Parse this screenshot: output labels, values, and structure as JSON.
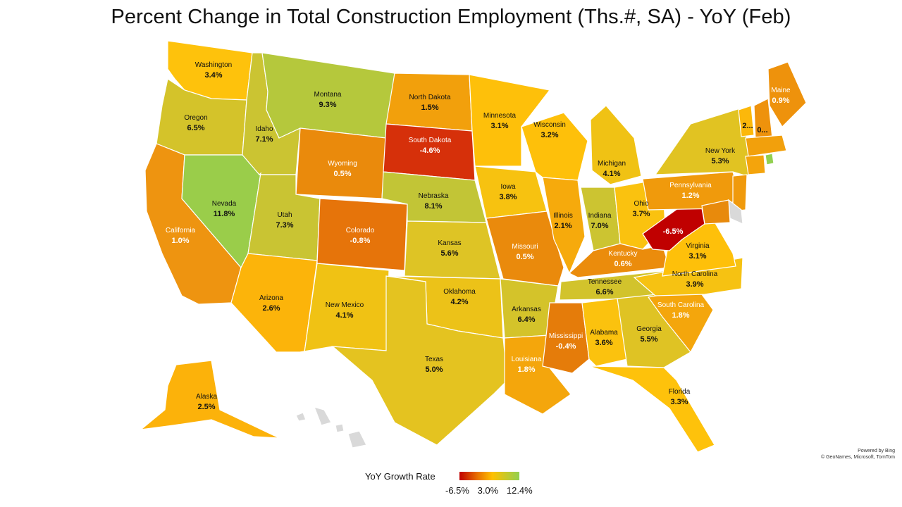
{
  "title": "Percent Change in Total Construction Employment (Ths.#, SA) - YoY (Feb)",
  "credit": {
    "line1": "Powered by Bing",
    "line2": "© GeoNames, Microsoft, TomTom"
  },
  "legend": {
    "title": "YoY Growth Rate",
    "min": "-6.5%",
    "mid": "3.0%",
    "max": "12.4%"
  },
  "colors": {
    "low": "#c00000",
    "mid": "#ffc000",
    "high": "#92d050",
    "nodata": "#d9d9d9"
  },
  "states": [
    {
      "id": "WA",
      "name": "Washington",
      "value": "3.4%",
      "color": "#fec20c"
    },
    {
      "id": "OR",
      "name": "Oregon",
      "value": "6.5%",
      "color": "#d4c32a"
    },
    {
      "id": "CA",
      "name": "California",
      "value": "1.0%",
      "color": "#ee9410"
    },
    {
      "id": "NV",
      "name": "Nevada",
      "value": "11.8%",
      "color": "#9acd4a"
    },
    {
      "id": "ID",
      "name": "Idaho",
      "value": "7.1%",
      "color": "#cbc432"
    },
    {
      "id": "MT",
      "name": "Montana",
      "value": "9.3%",
      "color": "#b5c83c"
    },
    {
      "id": "WY",
      "name": "Wyoming",
      "value": "0.5%",
      "color": "#ea8a0c"
    },
    {
      "id": "UT",
      "name": "Utah",
      "value": "7.3%",
      "color": "#c9c433"
    },
    {
      "id": "AZ",
      "name": "Arizona",
      "value": "2.6%",
      "color": "#fcb40a"
    },
    {
      "id": "CO",
      "name": "Colorado",
      "value": "-0.8%",
      "color": "#e6740a"
    },
    {
      "id": "NM",
      "name": "New Mexico",
      "value": "4.1%",
      "color": "#f0c214"
    },
    {
      "id": "ND",
      "name": "North Dakota",
      "value": "1.5%",
      "color": "#f2a00c"
    },
    {
      "id": "SD",
      "name": "South Dakota",
      "value": "-4.6%",
      "color": "#d6300a"
    },
    {
      "id": "NE",
      "name": "Nebraska",
      "value": "8.1%",
      "color": "#c2c536"
    },
    {
      "id": "KS",
      "name": "Kansas",
      "value": "5.6%",
      "color": "#dec425"
    },
    {
      "id": "OK",
      "name": "Oklahoma",
      "value": "4.2%",
      "color": "#ecc218"
    },
    {
      "id": "TX",
      "name": "Texas",
      "value": "5.0%",
      "color": "#e4c320"
    },
    {
      "id": "MN",
      "name": "Minnesota",
      "value": "3.1%",
      "color": "#fec00a"
    },
    {
      "id": "IA",
      "name": "Iowa",
      "value": "3.8%",
      "color": "#f7c210"
    },
    {
      "id": "MO",
      "name": "Missouri",
      "value": "0.5%",
      "color": "#ea8a0c"
    },
    {
      "id": "AR",
      "name": "Arkansas",
      "value": "6.4%",
      "color": "#d4c32a"
    },
    {
      "id": "LA",
      "name": "Louisiana",
      "value": "1.8%",
      "color": "#f4a60c"
    },
    {
      "id": "WI",
      "name": "Wisconsin",
      "value": "3.2%",
      "color": "#fec00a"
    },
    {
      "id": "IL",
      "name": "Illinois",
      "value": "2.1%",
      "color": "#f6aa0c"
    },
    {
      "id": "MI",
      "name": "Michigan",
      "value": "4.1%",
      "color": "#f0c214"
    },
    {
      "id": "IN",
      "name": "Indiana",
      "value": "7.0%",
      "color": "#ccc431"
    },
    {
      "id": "OH",
      "name": "Ohio",
      "value": "3.7%",
      "color": "#fac20f"
    },
    {
      "id": "KY",
      "name": "Kentucky",
      "value": "0.6%",
      "color": "#eb8c0c"
    },
    {
      "id": "TN",
      "name": "Tennessee",
      "value": "6.6%",
      "color": "#d2c32c"
    },
    {
      "id": "MS",
      "name": "Mississippi",
      "value": "-0.4%",
      "color": "#e57c0a"
    },
    {
      "id": "AL",
      "name": "Alabama",
      "value": "3.6%",
      "color": "#fbc20e"
    },
    {
      "id": "GA",
      "name": "Georgia",
      "value": "5.5%",
      "color": "#dfc324"
    },
    {
      "id": "FL",
      "name": "Florida",
      "value": "3.3%",
      "color": "#fec20b"
    },
    {
      "id": "SC",
      "name": "South Carolina",
      "value": "1.8%",
      "color": "#f4a60c"
    },
    {
      "id": "NC",
      "name": "North Carolina",
      "value": "3.9%",
      "color": "#f6c212"
    },
    {
      "id": "VA",
      "name": "Virginia",
      "value": "3.1%",
      "color": "#fec00a"
    },
    {
      "id": "WV",
      "name": "",
      "value": "-6.5%",
      "color": "#c00000"
    },
    {
      "id": "PA",
      "name": "Pennsylvania",
      "value": "1.2%",
      "color": "#f09a0c"
    },
    {
      "id": "NY",
      "name": "New York",
      "value": "5.3%",
      "color": "#e1c322"
    },
    {
      "id": "ME",
      "name": "Maine",
      "value": "0.9%",
      "color": "#ee920c"
    },
    {
      "id": "VT",
      "name": "",
      "value": "2...",
      "color": "#fcb80a"
    },
    {
      "id": "NH",
      "name": "",
      "value": "0...",
      "color": "#ee920c"
    },
    {
      "id": "MA",
      "name": "",
      "value": "",
      "color": "#f2a00c"
    },
    {
      "id": "CT",
      "name": "",
      "value": "",
      "color": "#f4a40c"
    },
    {
      "id": "RI",
      "name": "",
      "value": "",
      "color": "#92d050"
    },
    {
      "id": "NJ",
      "name": "",
      "value": "",
      "color": "#f09a0c"
    },
    {
      "id": "DE",
      "name": "",
      "value": "",
      "color": "#d9d9d9"
    },
    {
      "id": "MD",
      "name": "",
      "value": "",
      "color": "#e88a0c"
    },
    {
      "id": "AK",
      "name": "Alaska",
      "value": "2.5%",
      "color": "#fcb20a"
    },
    {
      "id": "HI",
      "name": "",
      "value": "",
      "color": "#d9d9d9"
    }
  ]
}
